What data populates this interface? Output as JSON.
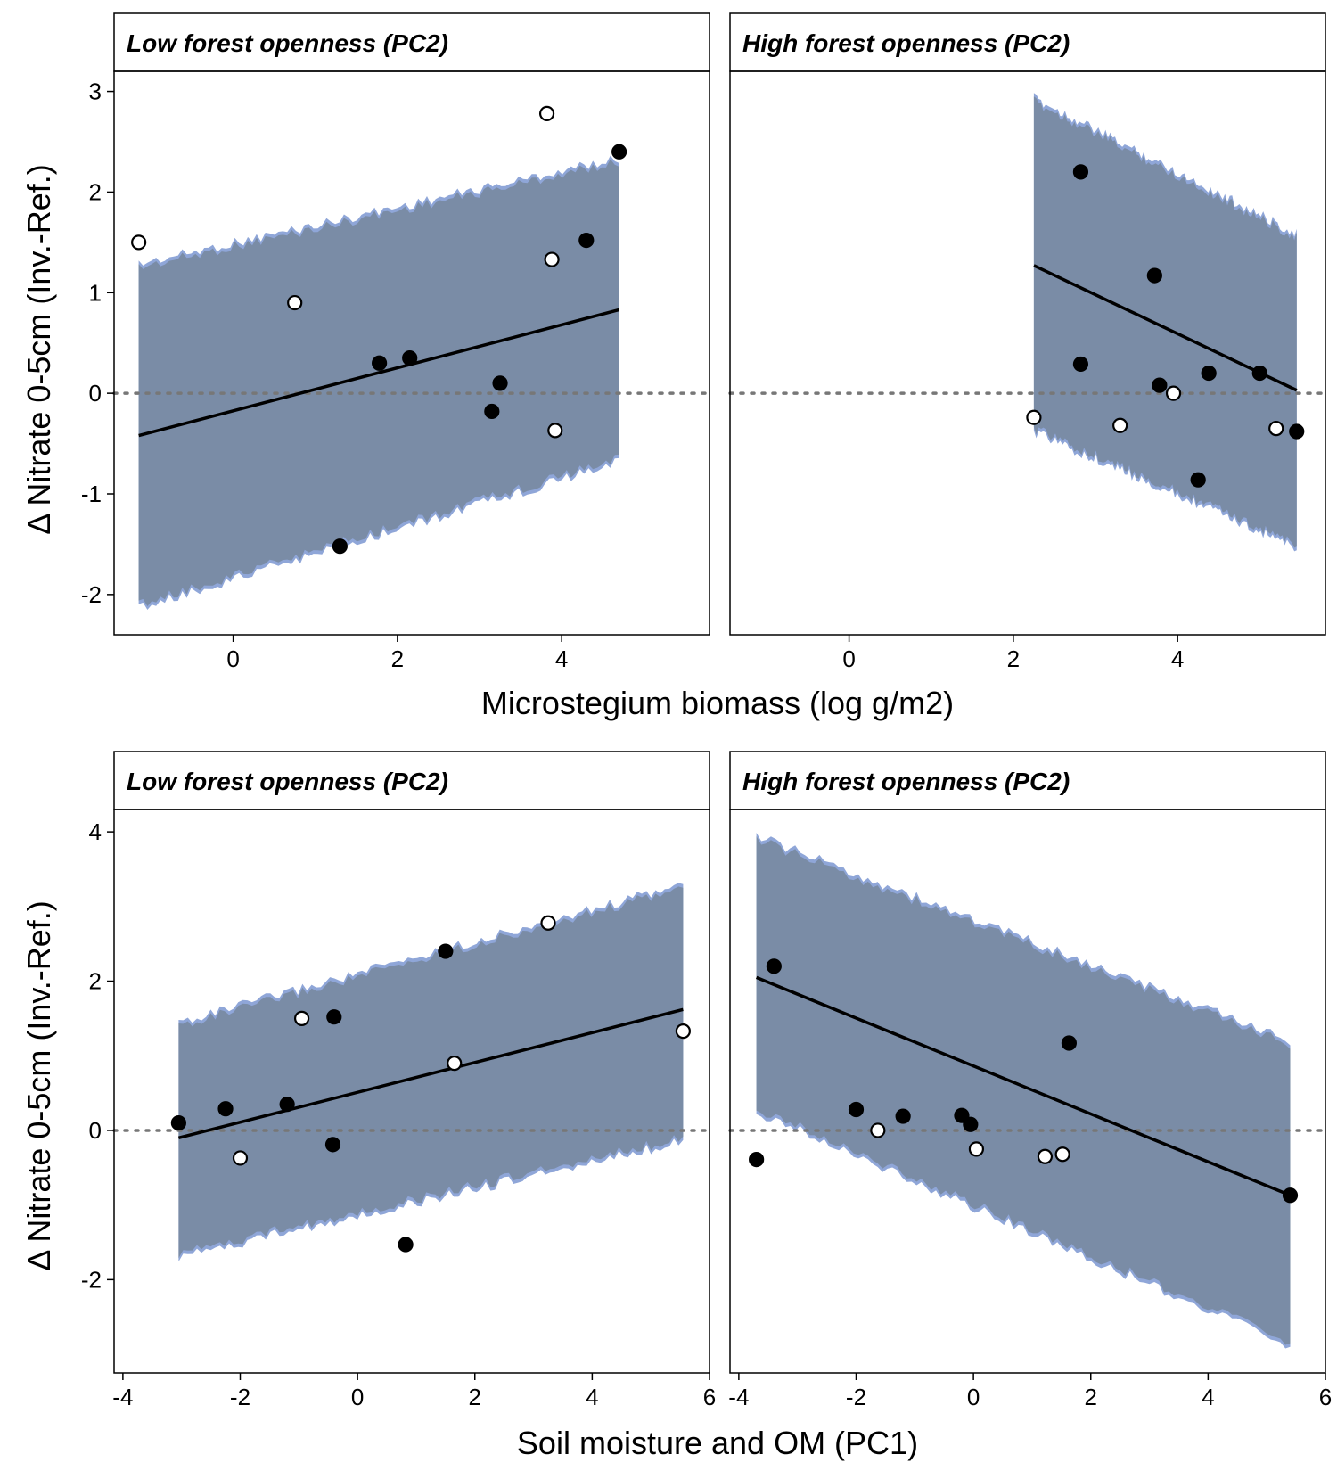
{
  "chart_data": [
    {
      "type": "scatter",
      "panel": "top-left",
      "strip": "Low forest openness (PC2)",
      "xlim": [
        -1.45,
        5.8
      ],
      "ylim": [
        -2.4,
        3.2
      ],
      "xticks": [
        0,
        2,
        4
      ],
      "yticks": [
        -2,
        -1,
        0,
        1,
        2,
        3
      ],
      "reference_line_y": 0,
      "ribbon": {
        "x0": -1.15,
        "x1": 4.7,
        "lower0": -2.1,
        "lower1": -0.65,
        "upper0": 1.25,
        "upper1": 2.3
      },
      "fit_line": {
        "x": [
          -1.15,
          4.7
        ],
        "y": [
          -0.42,
          0.83
        ]
      },
      "points": [
        {
          "x": -1.15,
          "y": 1.5,
          "filled": false
        },
        {
          "x": 0.75,
          "y": 0.9,
          "filled": false
        },
        {
          "x": 1.3,
          "y": -1.52,
          "filled": true
        },
        {
          "x": 1.78,
          "y": 0.3,
          "filled": true
        },
        {
          "x": 2.15,
          "y": 0.35,
          "filled": true
        },
        {
          "x": 3.15,
          "y": -0.18,
          "filled": true
        },
        {
          "x": 3.25,
          "y": 0.1,
          "filled": true
        },
        {
          "x": 3.82,
          "y": 2.78,
          "filled": false
        },
        {
          "x": 3.88,
          "y": 1.33,
          "filled": false
        },
        {
          "x": 3.92,
          "y": -0.37,
          "filled": false
        },
        {
          "x": 4.3,
          "y": 1.52,
          "filled": true
        },
        {
          "x": 4.7,
          "y": 2.4,
          "filled": true
        }
      ]
    },
    {
      "type": "scatter",
      "panel": "top-right",
      "strip": "High forest openness (PC2)",
      "xlim": [
        -1.45,
        5.8
      ],
      "ylim": [
        -2.4,
        3.2
      ],
      "xticks": [
        0,
        2,
        4
      ],
      "yticks": [
        -2,
        -1,
        0,
        1,
        2,
        3
      ],
      "reference_line_y": 0,
      "ribbon": {
        "x0": 2.25,
        "x1": 5.45,
        "lower0": -0.35,
        "lower1": -1.5,
        "upper0": 2.9,
        "upper1": 1.55
      },
      "fit_line": {
        "x": [
          2.25,
          5.45
        ],
        "y": [
          1.27,
          0.03
        ]
      },
      "points": [
        {
          "x": 2.25,
          "y": -0.24,
          "filled": false
        },
        {
          "x": 2.82,
          "y": 2.2,
          "filled": true
        },
        {
          "x": 2.82,
          "y": 0.29,
          "filled": true
        },
        {
          "x": 3.3,
          "y": -0.32,
          "filled": false
        },
        {
          "x": 3.72,
          "y": 1.17,
          "filled": true
        },
        {
          "x": 3.78,
          "y": 0.08,
          "filled": true
        },
        {
          "x": 3.95,
          "y": 0.0,
          "filled": false
        },
        {
          "x": 4.25,
          "y": -0.86,
          "filled": true
        },
        {
          "x": 4.38,
          "y": 0.2,
          "filled": true
        },
        {
          "x": 5.0,
          "y": 0.2,
          "filled": true
        },
        {
          "x": 5.2,
          "y": -0.35,
          "filled": false
        },
        {
          "x": 5.45,
          "y": -0.38,
          "filled": true
        }
      ]
    },
    {
      "type": "scatter",
      "panel": "bottom-left",
      "strip": "Low forest openness (PC2)",
      "xlim": [
        -4.15,
        6.0
      ],
      "ylim": [
        -3.25,
        4.3
      ],
      "xticks": [
        -4,
        -2,
        0,
        2,
        4,
        6
      ],
      "yticks": [
        -2,
        0,
        2,
        4
      ],
      "reference_line_y": 0,
      "ribbon": {
        "x0": -3.05,
        "x1": 5.55,
        "lower0": -1.65,
        "lower1": -0.1,
        "upper0": 1.4,
        "upper1": 3.25
      },
      "fit_line": {
        "x": [
          -3.05,
          5.55
        ],
        "y": [
          -0.1,
          1.62
        ]
      },
      "points": [
        {
          "x": -3.05,
          "y": 0.1,
          "filled": true
        },
        {
          "x": -2.25,
          "y": 0.29,
          "filled": true
        },
        {
          "x": -2.0,
          "y": -0.37,
          "filled": false
        },
        {
          "x": -1.2,
          "y": 0.35,
          "filled": true
        },
        {
          "x": -0.95,
          "y": 1.5,
          "filled": false
        },
        {
          "x": -0.4,
          "y": 1.52,
          "filled": true
        },
        {
          "x": -0.42,
          "y": -0.19,
          "filled": true
        },
        {
          "x": 0.82,
          "y": -1.53,
          "filled": true
        },
        {
          "x": 1.5,
          "y": 2.4,
          "filled": true
        },
        {
          "x": 1.65,
          "y": 0.9,
          "filled": false
        },
        {
          "x": 3.25,
          "y": 2.78,
          "filled": false
        },
        {
          "x": 5.55,
          "y": 1.33,
          "filled": false
        }
      ]
    },
    {
      "type": "scatter",
      "panel": "bottom-right",
      "strip": "High forest openness (PC2)",
      "xlim": [
        -4.15,
        6.0
      ],
      "ylim": [
        -3.25,
        4.3
      ],
      "xticks": [
        -4,
        -2,
        0,
        2,
        4,
        6
      ],
      "yticks": [
        -2,
        0,
        2,
        4
      ],
      "reference_line_y": 0,
      "ribbon": {
        "x0": -3.7,
        "x1": 5.4,
        "lower0": 0.3,
        "lower1": -2.85,
        "upper0": 3.9,
        "upper1": 1.15
      },
      "fit_line": {
        "x": [
          -3.7,
          5.4
        ],
        "y": [
          2.05,
          -0.87
        ]
      },
      "points": [
        {
          "x": -3.7,
          "y": -0.39,
          "filled": true
        },
        {
          "x": -3.4,
          "y": 2.2,
          "filled": true
        },
        {
          "x": -2.0,
          "y": 0.28,
          "filled": true
        },
        {
          "x": -1.63,
          "y": 0.0,
          "filled": false
        },
        {
          "x": -1.2,
          "y": 0.19,
          "filled": true
        },
        {
          "x": -0.2,
          "y": 0.2,
          "filled": true
        },
        {
          "x": -0.05,
          "y": 0.08,
          "filled": true
        },
        {
          "x": 0.05,
          "y": -0.25,
          "filled": false
        },
        {
          "x": 1.22,
          "y": -0.35,
          "filled": false
        },
        {
          "x": 1.52,
          "y": -0.32,
          "filled": false
        },
        {
          "x": 1.63,
          "y": 1.17,
          "filled": true
        },
        {
          "x": 5.4,
          "y": -0.87,
          "filled": true
        }
      ]
    }
  ],
  "labels": {
    "top_xlabel": "Microstegium biomass (log g/m2)",
    "bottom_xlabel": "Soil moisture and OM (PC1)",
    "ylabel": "Δ Nitrate 0-5cm (Inv.-Ref.)"
  },
  "colors": {
    "ribbon_fill": "#7a8ca6",
    "ribbon_edge": "#8fa6d8",
    "fit_line": "#000000",
    "reference_line": "#777777",
    "point": "#000000"
  }
}
